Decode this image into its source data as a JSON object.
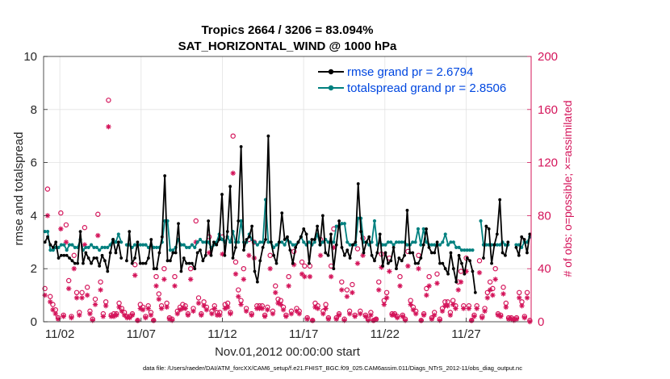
{
  "chart_data": {
    "type": "line",
    "title_line1": "Tropics 2664 / 3206 = 83.094%",
    "title_line2": "SAT_HORIZONTAL_WIND @ 1000 hPa",
    "xlabel": "Nov.01,2012 00:00:00 start",
    "ylabel_left": "rmse and totalspread",
    "ylabel_right": "# of obs: o=possible; ×=assimilated",
    "footnote": "data file: /Users/raeder/DAI/ATM_forcXX/CAM6_setup/f.e21.FHIST_BGC.f09_025.CAM6assim.011/Diags_NTrS_2012-11/obs_diag_output.nc",
    "x_range_days": [
      0,
      30
    ],
    "ylim_left": [
      0,
      10
    ],
    "ylim_right": [
      0,
      200
    ],
    "x_ticks": [
      {
        "day": 1,
        "label": "11/02"
      },
      {
        "day": 6,
        "label": "11/07"
      },
      {
        "day": 11,
        "label": "11/12"
      },
      {
        "day": 16,
        "label": "11/17"
      },
      {
        "day": 21,
        "label": "11/22"
      },
      {
        "day": 26,
        "label": "11/27"
      }
    ],
    "y_ticks_left": [
      "0",
      "2",
      "4",
      "6",
      "8",
      "10"
    ],
    "y_ticks_right": [
      "0",
      "40",
      "80",
      "120",
      "160",
      "200"
    ],
    "colors": {
      "rmse": "#000000",
      "spread": "#00807f",
      "obs": "#d4145a",
      "legend_text": "#0047e0"
    },
    "series": [
      {
        "name": "rmse grand pr = 2.6794",
        "color": "#000000",
        "values": [
          3.0,
          3.2,
          2.9,
          2.8,
          3.0,
          2.4,
          2.5,
          2.5,
          2.5,
          2.4,
          2.3,
          2.2,
          2.2,
          3.4,
          2.2,
          2.6,
          2.4,
          2.2,
          2.4,
          2.4,
          2.1,
          2.5,
          2.3,
          1.9,
          2.6,
          3.1,
          2.6,
          3.0,
          2.4,
          null,
          2.3,
          3.4,
          2.2,
          2.4,
          3.0,
          2.2,
          2.2,
          2.2,
          2.4,
          3.1,
          2.0,
          2.0,
          2.6,
          3.2,
          5.5,
          2.3,
          2.3,
          2.6,
          2.6,
          3.7,
          1.9,
          2.4,
          2.2,
          2.2,
          2.2,
          2.0,
          2.6,
          2.7,
          2.3,
          2.5,
          3.8,
          2.5,
          3.0,
          2.9,
          3.1,
          4.8,
          2.5,
          3.4,
          5.1,
          2.4,
          2.8,
          3.8,
          6.6,
          2.7,
          3.1,
          3.2,
          3.6,
          1.9,
          1.5,
          2.3,
          2.8,
          3.1,
          7.0,
          3.0,
          2.5,
          2.2,
          3.0,
          4.1,
          3.1,
          3.2,
          2.7,
          2.2,
          2.8,
          3.0,
          3.2,
          3.5,
          3.3,
          2.2,
          3.1,
          3.1,
          3.6,
          2.9,
          4.0,
          2.6,
          2.5,
          3.3,
          2.0,
          2.9,
          3.8,
          2.8,
          2.5,
          2.7,
          2.4,
          2.9,
          3.0,
          5.2,
          3.4,
          2.6,
          3.0,
          3.2,
          2.5,
          2.3,
          2.6,
          3.3,
          2.1,
          2.6,
          2.2,
          2.3,
          2.8,
          2.0,
          2.4,
          2.3,
          2.5,
          4.2,
          2.6,
          2.6,
          2.2,
          2.2,
          2.4,
          2.9,
          3.5,
          2.8,
          2.6,
          2.6,
          3.0,
          2.2,
          2.2,
          2.0,
          1.8,
          2.6,
          2.0,
          1.5,
          2.5,
          2.2,
          1.8,
          2.4,
          2.3,
          1.9,
          1.1,
          null,
          null,
          2.4,
          3.6,
          3.5,
          2.2,
          2.9,
          3.3,
          4.6,
          2.6,
          2.5,
          3.0,
          null,
          null,
          2.8,
          2.5,
          3.2,
          3.1,
          2.6,
          3.3
        ]
      },
      {
        "name": "totalspread grand pr = 2.8506",
        "color": "#00807f",
        "values": [
          3.4,
          3.4,
          2.7,
          2.7,
          2.8,
          2.8,
          2.9,
          2.9,
          2.7,
          2.9,
          2.9,
          2.8,
          2.8,
          3.1,
          2.7,
          2.8,
          2.8,
          2.9,
          2.8,
          2.8,
          2.7,
          2.8,
          2.8,
          2.8,
          2.9,
          3.1,
          3.0,
          3.3,
          3.0,
          null,
          2.9,
          2.9,
          2.8,
          2.9,
          2.9,
          2.9,
          2.9,
          2.9,
          2.8,
          2.9,
          2.8,
          2.8,
          2.8,
          3.0,
          3.8,
          3.8,
          2.7,
          2.7,
          2.8,
          3.1,
          2.9,
          2.9,
          2.8,
          2.8,
          2.9,
          2.8,
          3.0,
          3.1,
          3.0,
          3.0,
          3.0,
          2.8,
          2.9,
          3.0,
          3.3,
          3.1,
          3.0,
          3.2,
          3.0,
          3.4,
          3.0,
          3.0,
          3.8,
          3.0,
          3.0,
          3.3,
          3.1,
          3.0,
          2.9,
          3.0,
          3.0,
          4.6,
          3.0,
          3.0,
          2.8,
          2.9,
          3.0,
          3.0,
          2.9,
          3.1,
          3.0,
          2.9,
          2.9,
          3.0,
          3.2,
          3.0,
          2.9,
          3.0,
          2.9,
          3.0,
          3.3,
          2.9,
          3.0,
          3.1,
          3.0,
          3.0,
          3.0,
          3.6,
          3.6,
          3.7,
          3.7,
          3.0,
          2.9,
          2.9,
          2.9,
          3.9,
          3.9,
          3.0,
          3.0,
          2.9,
          3.0,
          3.8,
          2.9,
          3.0,
          2.9,
          2.9,
          3.0,
          3.0,
          2.9,
          3.0,
          3.0,
          3.0,
          3.0,
          2.9,
          2.9,
          3.0,
          3.0,
          3.5,
          2.9,
          3.5,
          3.0,
          2.9,
          2.9,
          2.9,
          2.9,
          2.9,
          3.0,
          3.3,
          2.9,
          3.0,
          3.0,
          2.8,
          2.8,
          2.7,
          2.7,
          2.7,
          2.7,
          2.7,
          null,
          null,
          3.8,
          2.9,
          2.9,
          2.9,
          2.9,
          2.9,
          2.9,
          2.9,
          3.0,
          2.9,
          2.9,
          null,
          null,
          2.9,
          2.9,
          2.8,
          3.0,
          3.0,
          3.2
        ]
      }
    ],
    "obs_possible": [
      25,
      100,
      19,
      13,
      9,
      3,
      82,
      5,
      73,
      31,
      4,
      50,
      22,
      7,
      22,
      71,
      26,
      8,
      2,
      17,
      81,
      30,
      6,
      15,
      167,
      5,
      6,
      6,
      14,
      10,
      7,
      4,
      4,
      6,
      43,
      1,
      13,
      11,
      4,
      12,
      7,
      1,
      34,
      21,
      12,
      40,
      14,
      3,
      2,
      34,
      8,
      11,
      13,
      12,
      6,
      40,
      10,
      76,
      18,
      6,
      15,
      11,
      64,
      8,
      12,
      7,
      7,
      64,
      13,
      14,
      7,
      140,
      45,
      24,
      16,
      40,
      10,
      62,
      6,
      60,
      12,
      12,
      12,
      5,
      11,
      50,
      8,
      27,
      17,
      16,
      11,
      5,
      34,
      8,
      53,
      10,
      8,
      45,
      42,
      3,
      42,
      1,
      14,
      12,
      62,
      8,
      13,
      3,
      42,
      70,
      3,
      6,
      30,
      2,
      24,
      8,
      28,
      5,
      55,
      8,
      63,
      5,
      2,
      7,
      1,
      2,
      30,
      51,
      16,
      22,
      48,
      6,
      6,
      4,
      34,
      5,
      2,
      53,
      16,
      11,
      8,
      50,
      1,
      6,
      25,
      34,
      3,
      7,
      36,
      2,
      10,
      15,
      15,
      7,
      16,
      12,
      30,
      38,
      12,
      48,
      12,
      1,
      5,
      12,
      46,
      4,
      10,
      22,
      30,
      25,
      40,
      6,
      5,
      26,
      14,
      3,
      3,
      2,
      3,
      22,
      15,
      4,
      22,
      1
    ],
    "obs_assimilated": [
      20,
      80,
      15,
      9,
      6,
      2,
      70,
      4,
      60,
      25,
      3,
      40,
      18,
      5,
      18,
      58,
      20,
      6,
      1,
      13,
      65,
      24,
      4,
      12,
      147,
      4,
      4,
      5,
      11,
      8,
      5,
      3,
      3,
      5,
      35,
      1,
      10,
      9,
      3,
      10,
      5,
      1,
      27,
      17,
      10,
      32,
      11,
      2,
      1,
      27,
      6,
      9,
      10,
      10,
      5,
      32,
      8,
      60,
      14,
      5,
      12,
      9,
      52,
      6,
      10,
      5,
      5,
      51,
      10,
      11,
      6,
      112,
      36,
      19,
      13,
      32,
      8,
      50,
      5,
      48,
      10,
      10,
      10,
      4,
      9,
      40,
      6,
      22,
      14,
      13,
      9,
      4,
      27,
      6,
      43,
      8,
      6,
      36,
      34,
      2,
      34,
      1,
      11,
      10,
      50,
      6,
      10,
      2,
      34,
      56,
      2,
      5,
      24,
      1,
      19,
      6,
      22,
      4,
      44,
      6,
      50,
      4,
      1,
      5,
      1,
      2,
      24,
      41,
      13,
      18,
      38,
      5,
      5,
      3,
      27,
      4,
      1,
      42,
      13,
      9,
      6,
      40,
      1,
      5,
      20,
      27,
      2,
      5,
      29,
      1,
      8,
      12,
      12,
      5,
      13,
      10,
      24,
      30,
      10,
      38,
      10,
      1,
      4,
      10,
      37,
      3,
      8,
      18,
      24,
      20,
      32,
      5,
      4,
      21,
      11,
      2,
      2,
      1,
      2,
      18,
      12,
      3,
      18,
      0
    ]
  }
}
